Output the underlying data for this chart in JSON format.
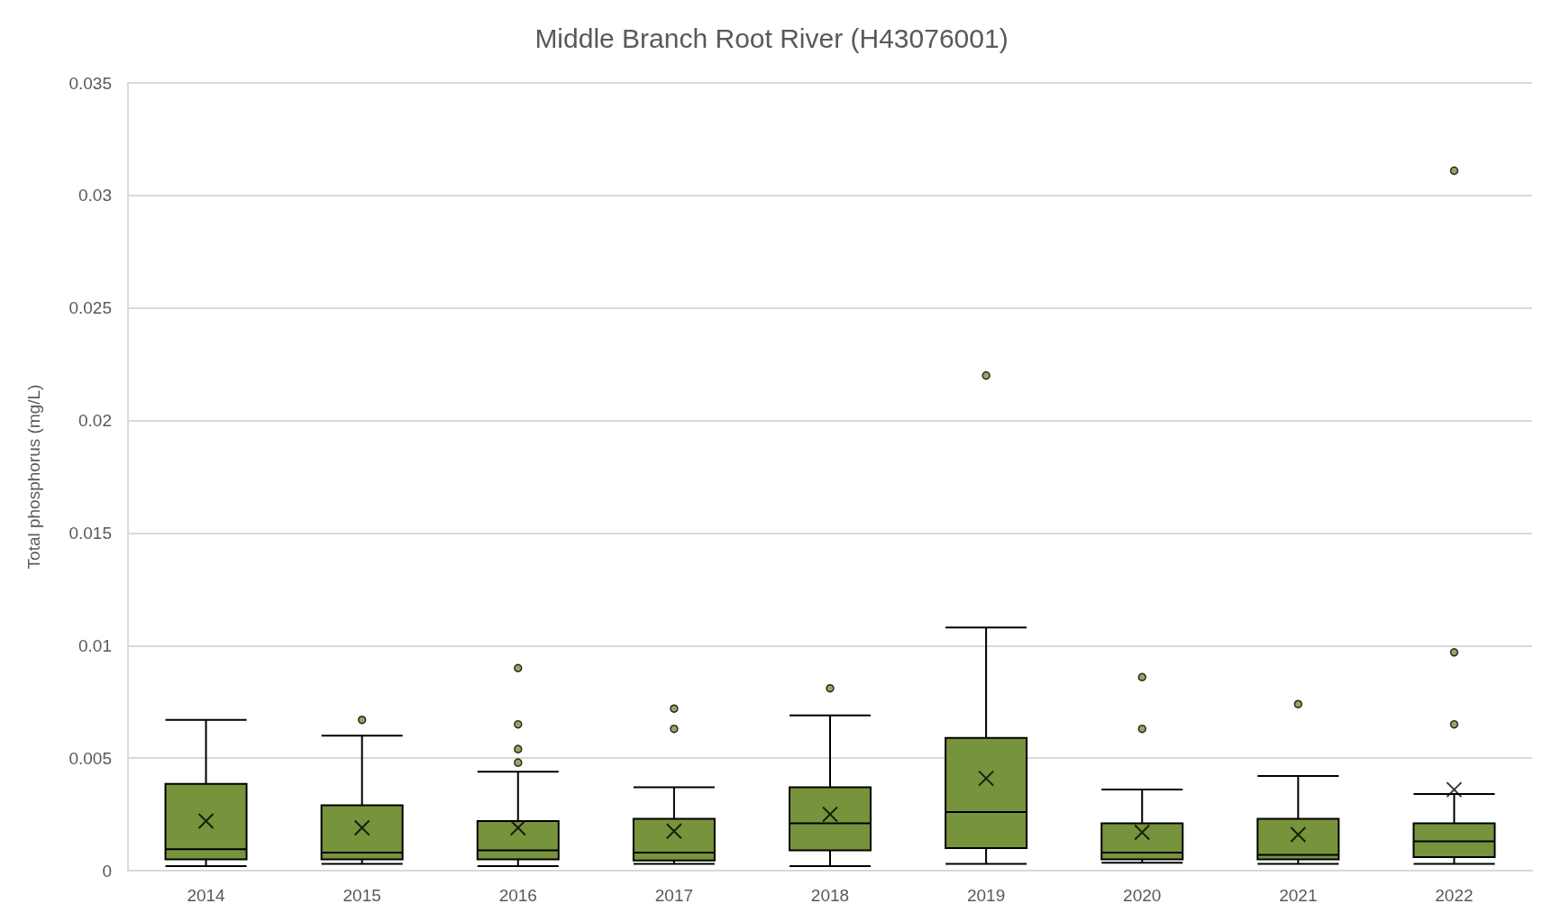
{
  "chart_data": {
    "type": "box",
    "title": "Middle Branch Root River (H43076001)",
    "ylabel": "Total phosphorus (mg/L)",
    "categories": [
      "2014",
      "2015",
      "2016",
      "2017",
      "2018",
      "2019",
      "2020",
      "2021",
      "2022"
    ],
    "color": "#77933c",
    "boxes": [
      {
        "low": 0.0002,
        "q1": 0.0005,
        "median": 0.00095,
        "q3": 0.00385,
        "high": 0.0067,
        "mean": 0.0022
      },
      {
        "low": 0.0003,
        "q1": 0.0005,
        "median": 0.0008,
        "q3": 0.0029,
        "high": 0.006,
        "mean": 0.0019,
        "outliers": [
          0.0067
        ]
      },
      {
        "low": 0.0002,
        "q1": 0.0005,
        "median": 0.0009,
        "q3": 0.0022,
        "high": 0.0044,
        "mean": 0.0019,
        "outliers": [
          0.009,
          0.0065,
          0.0054,
          0.0048
        ]
      },
      {
        "low": 0.0003,
        "q1": 0.00045,
        "median": 0.0008,
        "q3": 0.0023,
        "high": 0.0037,
        "mean": 0.00175,
        "outliers": [
          0.0072,
          0.0063
        ]
      },
      {
        "low": 0.0002,
        "q1": 0.0009,
        "median": 0.0021,
        "q3": 0.0037,
        "high": 0.0069,
        "mean": 0.0025,
        "outliers": [
          0.0081
        ]
      },
      {
        "low": 0.0003,
        "q1": 0.001,
        "median": 0.0026,
        "q3": 0.0059,
        "high": 0.0108,
        "mean": 0.0041,
        "outliers": [
          0.022
        ]
      },
      {
        "low": 0.00035,
        "q1": 0.0005,
        "median": 0.0008,
        "q3": 0.0021,
        "high": 0.0036,
        "mean": 0.0017,
        "outliers": [
          0.0086,
          0.0063
        ]
      },
      {
        "low": 0.0003,
        "q1": 0.0005,
        "median": 0.0007,
        "q3": 0.0023,
        "high": 0.0042,
        "mean": 0.0016,
        "outliers": [
          0.0074
        ]
      },
      {
        "low": 0.0003,
        "q1": 0.0006,
        "median": 0.0013,
        "q3": 0.0021,
        "high": 0.0034,
        "mean": 0.0036,
        "outliers": [
          0.0097,
          0.0065,
          0.0311
        ]
      }
    ],
    "ylim": [
      0,
      0.035
    ],
    "yticks": [
      0,
      0.005,
      0.01,
      0.015,
      0.02,
      0.025,
      0.03,
      0.035
    ],
    "grid": "y"
  }
}
